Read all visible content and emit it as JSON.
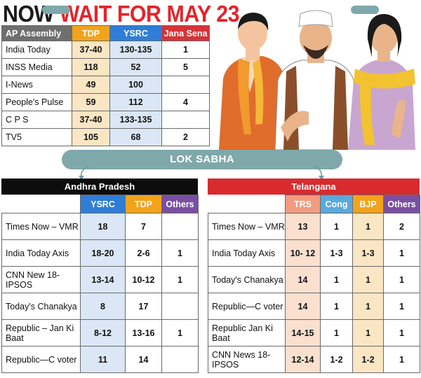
{
  "headline": {
    "part1": "NOW",
    "part2": "WAIT FOR MAY 23"
  },
  "colors": {
    "tdp": "#f2a31b",
    "ysrc": "#2f7dd6",
    "jana_sena": "#d63338",
    "trs": "#f39b7f",
    "cong": "#5aa9dd",
    "bjp": "#f2a31b",
    "others": "#7a4fa3",
    "band": "#7fa8ab",
    "accent_red": "#e3242b"
  },
  "assembly": {
    "headers": [
      "AP Assembly",
      "TDP",
      "YSRC",
      "Jana Sena"
    ],
    "rows": [
      [
        "India Today",
        "37-40",
        "130-135",
        "1"
      ],
      [
        "INSS Media",
        "118",
        "52",
        "5"
      ],
      [
        "I-News",
        "49",
        "100",
        ""
      ],
      [
        "People's Pulse",
        "59",
        "112",
        "4"
      ],
      [
        "C P S",
        "37-40",
        "133-135",
        ""
      ],
      [
        "TV5",
        "105",
        "68",
        "2"
      ]
    ]
  },
  "lok_sabha": {
    "title": "LOK SABHA"
  },
  "andhra_pradesh": {
    "title": "Andhra Pradesh",
    "headers": [
      "",
      "YSRC",
      "TDP",
      "Others"
    ],
    "rows": [
      [
        "Times Now – VMR",
        "18",
        "7",
        ""
      ],
      [
        "India Today Axis",
        "18-20",
        "2-6",
        "1"
      ],
      [
        "CNN New 18-IPSOS",
        "13-14",
        "10-12",
        "1"
      ],
      [
        "Today's Chanakya",
        "8",
        "17",
        ""
      ],
      [
        "Republic – Jan Ki Baat",
        "8-12",
        "13-16",
        "1"
      ],
      [
        "Republic—C voter",
        "11",
        "14",
        ""
      ]
    ]
  },
  "telangana": {
    "title": "Telangana",
    "headers": [
      "",
      "TRS",
      "Cong",
      "BJP",
      "Others"
    ],
    "rows": [
      [
        "Times Now – VMR",
        "13",
        "1",
        "1",
        "2"
      ],
      [
        "India Today Axis",
        "10- 12",
        "1-3",
        "1-3",
        "1"
      ],
      [
        "Today's Chanakya",
        "14",
        "1",
        "1",
        "1"
      ],
      [
        "Republic—C voter",
        "14",
        "1",
        "1",
        "1"
      ],
      [
        "Republic Jan Ki Baat",
        "14-15",
        "1",
        "1",
        "1"
      ],
      [
        "CNN News 18-IPSOS",
        "12-14",
        "1-2",
        "1-2",
        "1"
      ]
    ]
  }
}
